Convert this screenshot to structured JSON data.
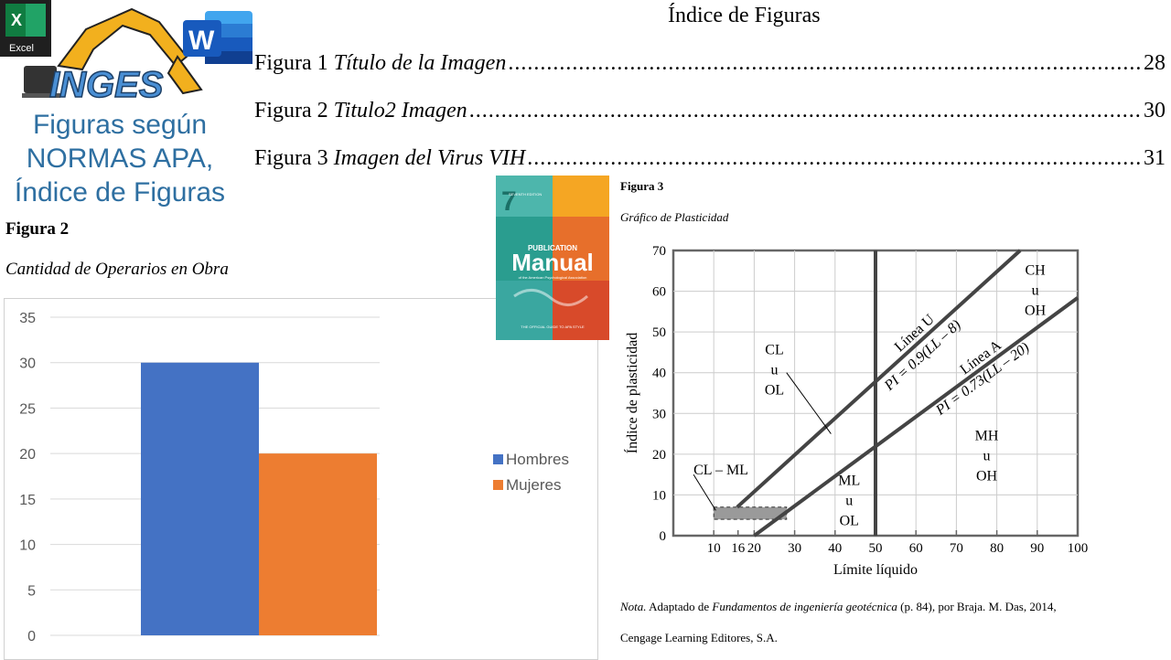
{
  "promo": {
    "excel_label": "Excel",
    "excel_letter": "X",
    "word_letter": "W",
    "logo_text": "INGES",
    "lines": [
      "Figuras según",
      "NORMAS APA,",
      "Índice de Figuras"
    ]
  },
  "index": {
    "title": "Índice de Figuras",
    "entries": [
      {
        "label": "Figura 1",
        "title": "Título de la Imagen",
        "page": "28"
      },
      {
        "label": "Figura 2",
        "title": "Titulo2 Imagen",
        "page": "30"
      },
      {
        "label": "Figura 3",
        "title": "Imagen del Virus VIH",
        "page": "31"
      }
    ]
  },
  "figure2": {
    "label": "Figura 2",
    "title": "Cantidad de Operarios en Obra",
    "chart_data": {
      "type": "bar",
      "categories": [
        ""
      ],
      "series": [
        {
          "name": "Hombres",
          "values": [
            30
          ],
          "color": "#4472c4"
        },
        {
          "name": "Mujeres",
          "values": [
            20
          ],
          "color": "#ed7d31"
        }
      ],
      "ylim": [
        0,
        35
      ],
      "yticks": [
        "0",
        "5",
        "10",
        "15",
        "20",
        "25",
        "30",
        "35"
      ],
      "grid": true,
      "legend": "right"
    }
  },
  "manual": {
    "edition": "SEVENTH EDITION",
    "number": "7",
    "word1": "PUBLICATION",
    "word2": "Manual",
    "subtitle": "of the American Psychological Association",
    "footer": "THE OFFICIAL GUIDE TO APA STYLE"
  },
  "figure3": {
    "label": "Figura 3",
    "title": "Gráfico de Plasticidad",
    "xlabel": "Límite líquido",
    "ylabel": "Índice de plasticidad",
    "xticks": [
      "10",
      "16",
      "20",
      "30",
      "40",
      "50",
      "60",
      "70",
      "80",
      "90",
      "100"
    ],
    "yticks": [
      "0",
      "10",
      "20",
      "30",
      "40",
      "50",
      "60",
      "70"
    ],
    "labels": {
      "ch": [
        "CH",
        "u",
        "OH"
      ],
      "cl": [
        "CL",
        "u",
        "OL"
      ],
      "mh": [
        "MH",
        "u",
        "OH"
      ],
      "ml": [
        "ML",
        "u",
        "OL"
      ],
      "clml": "CL – ML",
      "linea_u": "Línea U",
      "eq_u": "PI = 0.9(LL – 8)",
      "linea_a": "Línea A",
      "eq_a": "PI = 0.73(LL – 20)"
    },
    "nota": {
      "prefix": "Nota.",
      "text1": " Adaptado de ",
      "book": "Fundamentos de ingeniería geotécnica",
      "text2": " (p. 84), por Braja. M. Das, 2014,",
      "line2": "Cengage Learning Editores, S.A."
    }
  }
}
